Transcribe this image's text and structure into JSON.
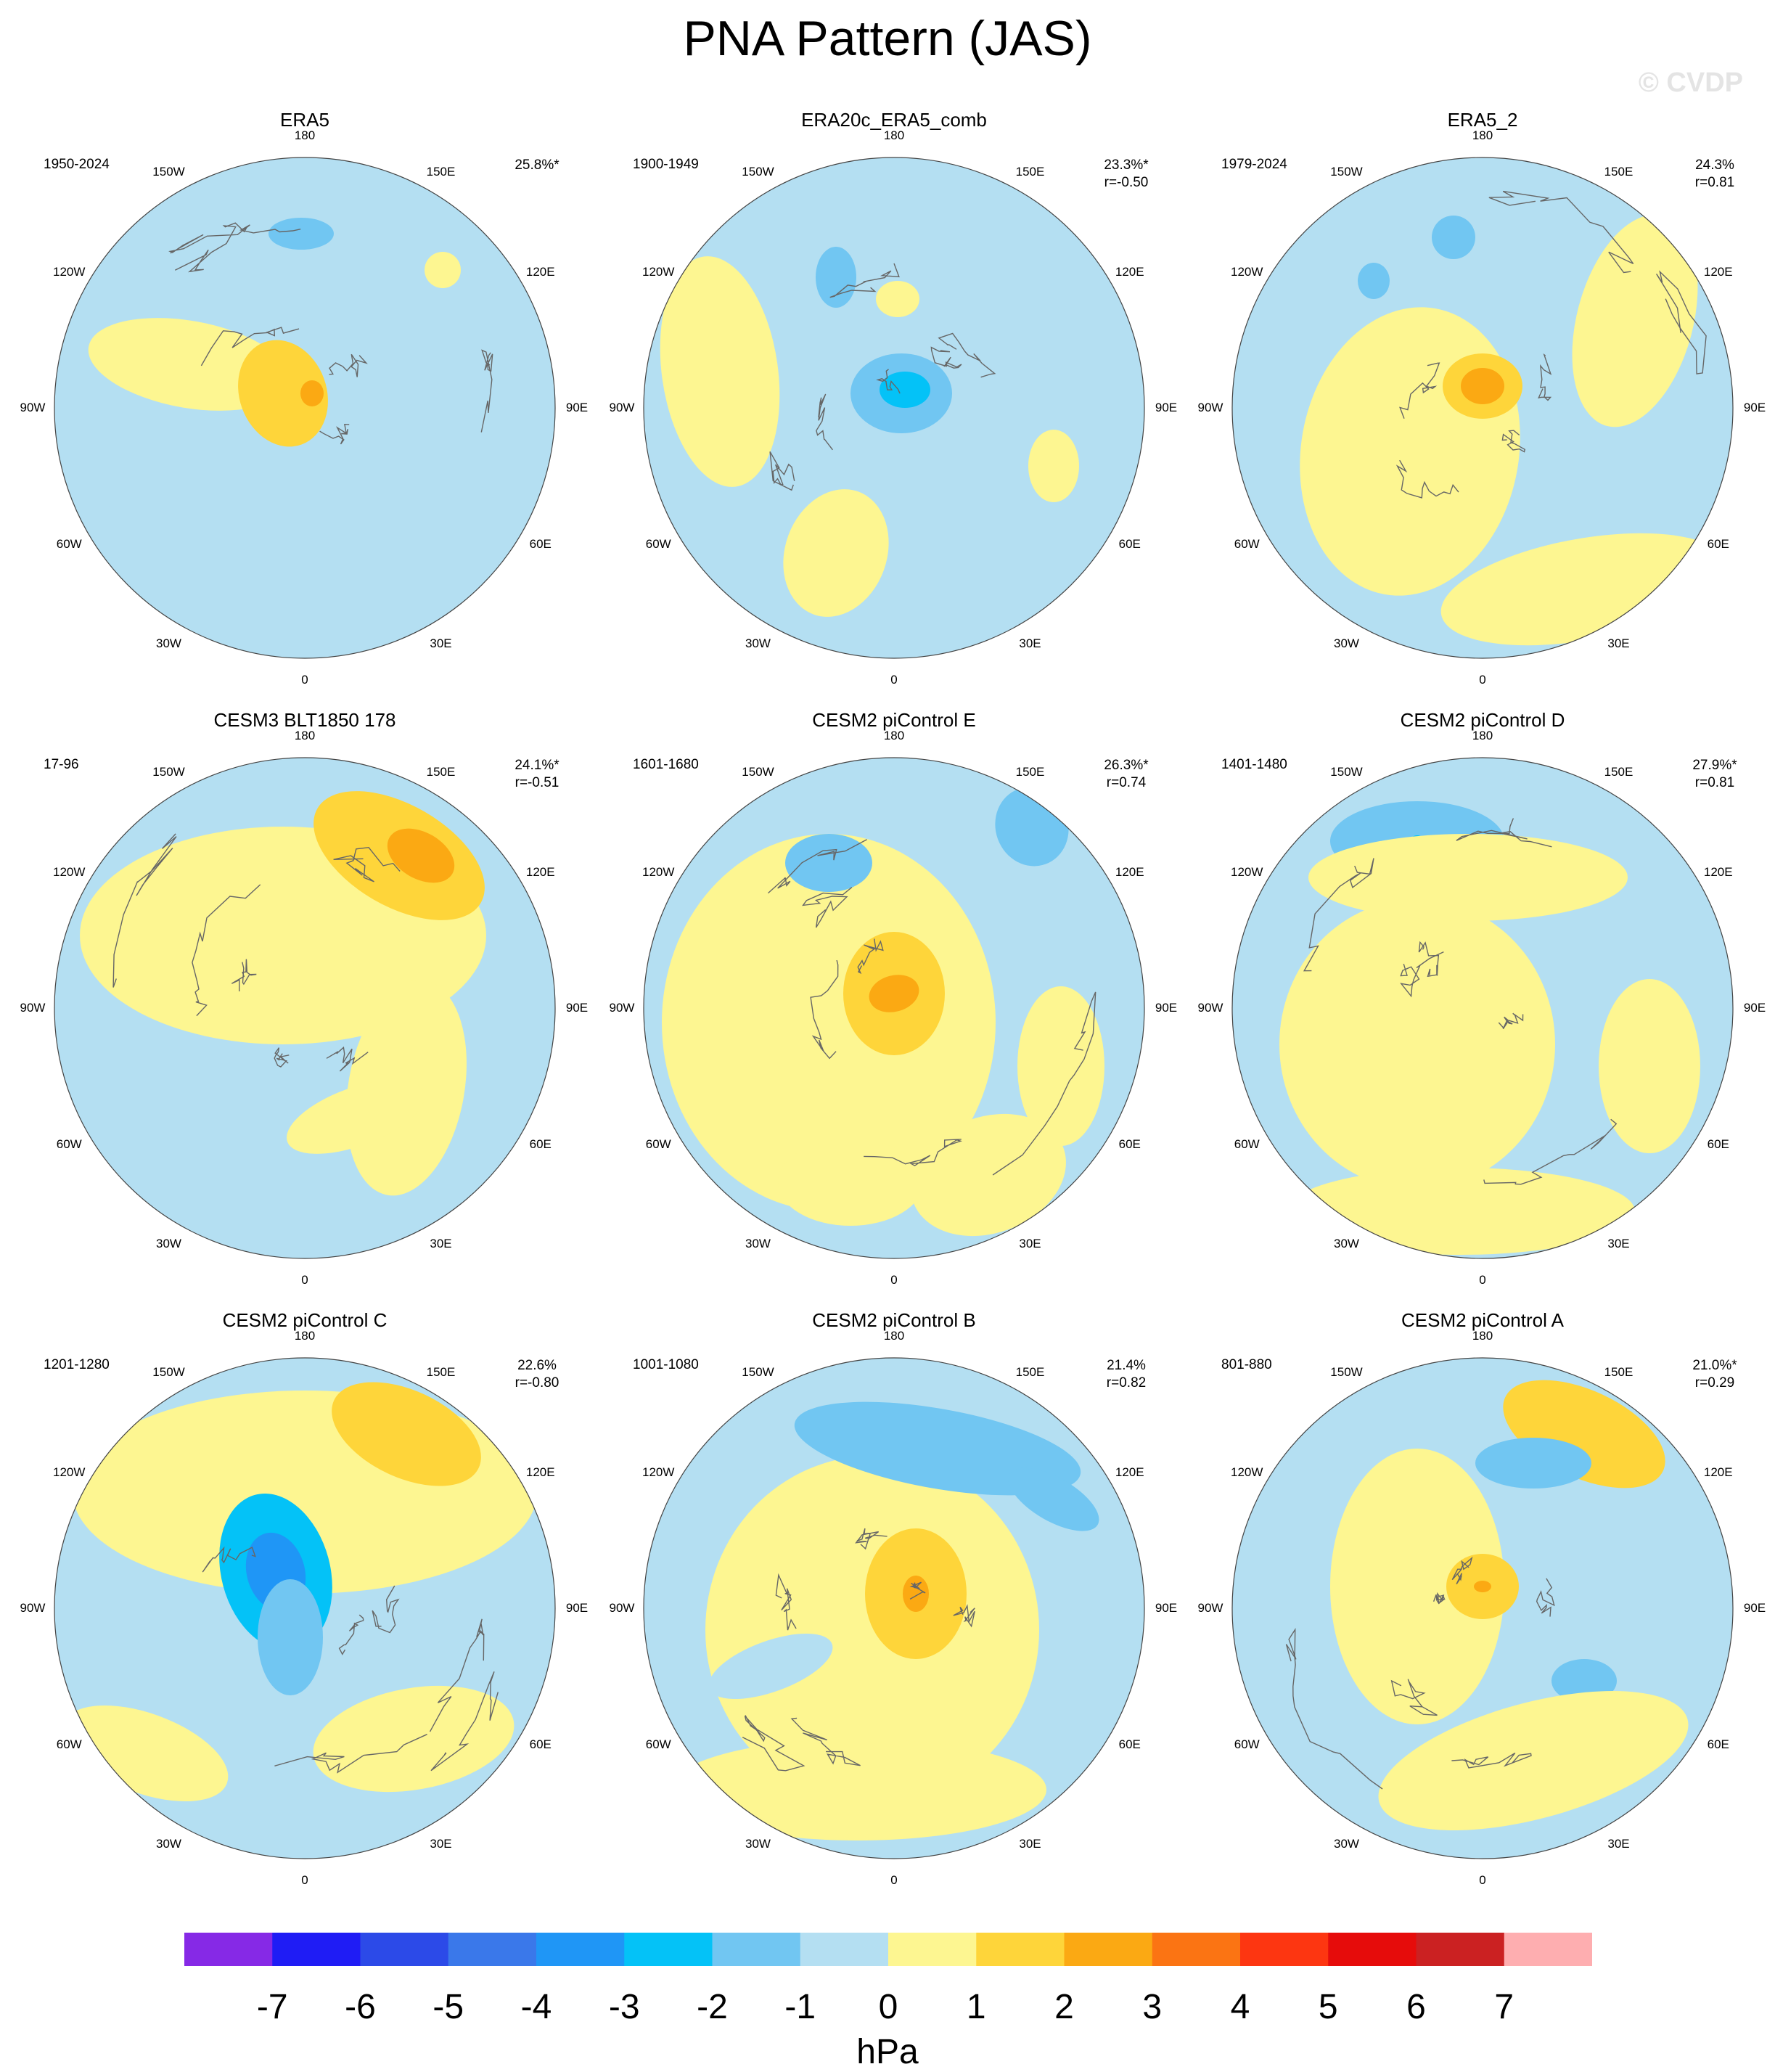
{
  "title": "PNA Pattern (JAS)",
  "watermark": "© CVDP",
  "longitude_labels": [
    "180",
    "150E",
    "120E",
    "90E",
    "60E",
    "30E",
    "0",
    "30W",
    "60W",
    "90W",
    "120W",
    "150W"
  ],
  "panels": [
    {
      "title": "ERA5",
      "period": "1950-2024",
      "pct": "25.8%*",
      "r": ""
    },
    {
      "title": "ERA20c_ERA5_comb",
      "period": "1900-1949",
      "pct": "23.3%*",
      "r": "r=-0.50"
    },
    {
      "title": "ERA5_2",
      "period": "1979-2024",
      "pct": "24.3%",
      "r": "r=0.81"
    },
    {
      "title": "CESM3 BLT1850 178",
      "period": "17-96",
      "pct": "24.1%*",
      "r": "r=-0.51"
    },
    {
      "title": "CESM2 piControl E",
      "period": "1601-1680",
      "pct": "26.3%*",
      "r": "r=0.74"
    },
    {
      "title": "CESM2 piControl D",
      "period": "1401-1480",
      "pct": "27.9%*",
      "r": "r=0.81"
    },
    {
      "title": "CESM2 piControl C",
      "period": "1201-1280",
      "pct": "22.6%",
      "r": "r=-0.80"
    },
    {
      "title": "CESM2 piControl B",
      "period": "1001-1080",
      "pct": "21.4%",
      "r": "r=0.82"
    },
    {
      "title": "CESM2 piControl A",
      "period": "801-880",
      "pct": "21.0%*",
      "r": "r=0.29"
    }
  ],
  "colorbar": {
    "unit": "hPa",
    "ticks": [
      "-7",
      "-6",
      "-5",
      "-4",
      "-3",
      "-2",
      "-1",
      "0",
      "1",
      "2",
      "3",
      "4",
      "5",
      "6",
      "7"
    ],
    "colors": [
      "#8629e6",
      "#1f1cf5",
      "#2c4ae8",
      "#3a78ea",
      "#1f96f6",
      "#04c2f7",
      "#71c6f2",
      "#b4dff2",
      "#fdf691",
      "#fed53a",
      "#fba913",
      "#fb7413",
      "#fd3611",
      "#e60c0b",
      "#cb2122",
      "#feaeb0"
    ]
  }
}
